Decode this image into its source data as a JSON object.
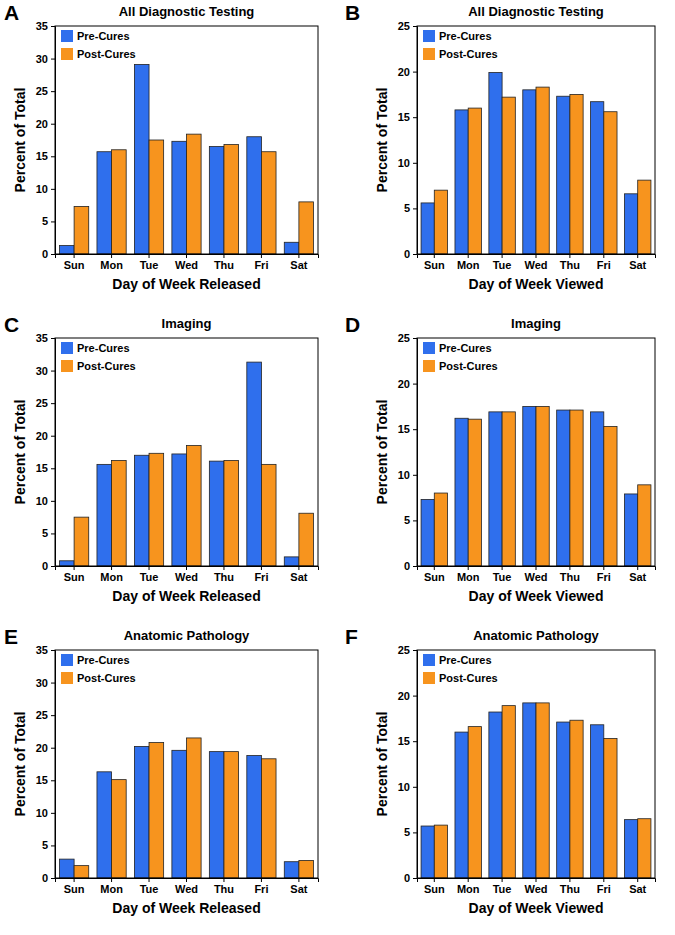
{
  "chart_data": [
    {
      "type": "bar",
      "annotation": "A",
      "title": "All Diagnostic Testing",
      "x_label": "Day of Week Released",
      "y_label": "Percent of Total",
      "categories": [
        "Sun",
        "Mon",
        "Tue",
        "Wed",
        "Thu",
        "Fri",
        "Sat"
      ],
      "series": [
        {
          "name": "Pre-Cures",
          "color": "#2f6fed",
          "values": [
            1.3,
            15.7,
            29.1,
            17.3,
            16.5,
            18.0,
            1.8
          ]
        },
        {
          "name": "Post-Cures",
          "color": "#f7941e",
          "values": [
            7.3,
            16.0,
            17.5,
            18.4,
            16.8,
            15.7,
            8.0
          ]
        }
      ],
      "ylim": [
        0,
        35
      ],
      "yticks": [
        0,
        5,
        10,
        15,
        20,
        25,
        30,
        35
      ],
      "legend": "top-left"
    },
    {
      "type": "bar",
      "annotation": "B",
      "title": "All Diagnostic Testing",
      "x_label": "Day of Week Viewed",
      "y_label": "Percent of Total",
      "categories": [
        "Sun",
        "Mon",
        "Tue",
        "Wed",
        "Thu",
        "Fri",
        "Sat"
      ],
      "series": [
        {
          "name": "Pre-Cures",
          "color": "#2f6fed",
          "values": [
            5.6,
            15.8,
            19.9,
            18.0,
            17.3,
            16.7,
            6.6
          ]
        },
        {
          "name": "Post-Cures",
          "color": "#f7941e",
          "values": [
            7.0,
            16.0,
            17.2,
            18.3,
            17.5,
            15.6,
            8.1
          ]
        }
      ],
      "ylim": [
        0,
        25
      ],
      "yticks": [
        0,
        5,
        10,
        15,
        20,
        25
      ],
      "legend": "top-left"
    },
    {
      "type": "bar",
      "annotation": "C",
      "title": "Imaging",
      "x_label": "Day of Week Released",
      "y_label": "Percent of Total",
      "categories": [
        "Sun",
        "Mon",
        "Tue",
        "Wed",
        "Thu",
        "Fri",
        "Sat"
      ],
      "series": [
        {
          "name": "Pre-Cures",
          "color": "#2f6fed",
          "values": [
            0.8,
            15.6,
            17.0,
            17.2,
            16.1,
            31.3,
            1.4
          ]
        },
        {
          "name": "Post-Cures",
          "color": "#f7941e",
          "values": [
            7.5,
            16.2,
            17.3,
            18.5,
            16.2,
            15.6,
            8.1
          ]
        }
      ],
      "ylim": [
        0,
        35
      ],
      "yticks": [
        0,
        5,
        10,
        15,
        20,
        25,
        30,
        35
      ],
      "legend": "top-left"
    },
    {
      "type": "bar",
      "annotation": "D",
      "title": "Imaging",
      "x_label": "Day of Week Viewed",
      "y_label": "Percent of Total",
      "categories": [
        "Sun",
        "Mon",
        "Tue",
        "Wed",
        "Thu",
        "Fri",
        "Sat"
      ],
      "series": [
        {
          "name": "Pre-Cures",
          "color": "#2f6fed",
          "values": [
            7.3,
            16.2,
            16.9,
            17.5,
            17.1,
            16.9,
            7.9
          ]
        },
        {
          "name": "Post-Cures",
          "color": "#f7941e",
          "values": [
            8.0,
            16.1,
            16.9,
            17.5,
            17.1,
            15.3,
            8.9
          ]
        }
      ],
      "ylim": [
        0,
        25
      ],
      "yticks": [
        0,
        5,
        10,
        15,
        20,
        25
      ],
      "legend": "top-left"
    },
    {
      "type": "bar",
      "annotation": "E",
      "title": "Anatomic Pathology",
      "x_label": "Day of Week Released",
      "y_label": "Percent of Total",
      "categories": [
        "Sun",
        "Mon",
        "Tue",
        "Wed",
        "Thu",
        "Fri",
        "Sat"
      ],
      "series": [
        {
          "name": "Pre-Cures",
          "color": "#2f6fed",
          "values": [
            2.9,
            16.3,
            20.2,
            19.6,
            19.4,
            18.8,
            2.5
          ]
        },
        {
          "name": "Post-Cures",
          "color": "#f7941e",
          "values": [
            1.9,
            15.1,
            20.8,
            21.5,
            19.4,
            18.3,
            2.7
          ]
        }
      ],
      "ylim": [
        0,
        35
      ],
      "yticks": [
        0,
        5,
        10,
        15,
        20,
        25,
        30,
        35
      ],
      "legend": "top-left"
    },
    {
      "type": "bar",
      "annotation": "F",
      "title": "Anatomic Pathology",
      "x_label": "Day of Week Viewed",
      "y_label": "Percent of Total",
      "categories": [
        "Sun",
        "Mon",
        "Tue",
        "Wed",
        "Thu",
        "Fri",
        "Sat"
      ],
      "series": [
        {
          "name": "Pre-Cures",
          "color": "#2f6fed",
          "values": [
            5.7,
            16.0,
            18.2,
            19.2,
            17.1,
            16.8,
            6.4
          ]
        },
        {
          "name": "Post-Cures",
          "color": "#f7941e",
          "values": [
            5.8,
            16.6,
            18.9,
            19.2,
            17.3,
            15.3,
            6.5
          ]
        }
      ],
      "ylim": [
        0,
        25
      ],
      "yticks": [
        0,
        5,
        10,
        15,
        20,
        25
      ],
      "legend": "top-left"
    }
  ]
}
